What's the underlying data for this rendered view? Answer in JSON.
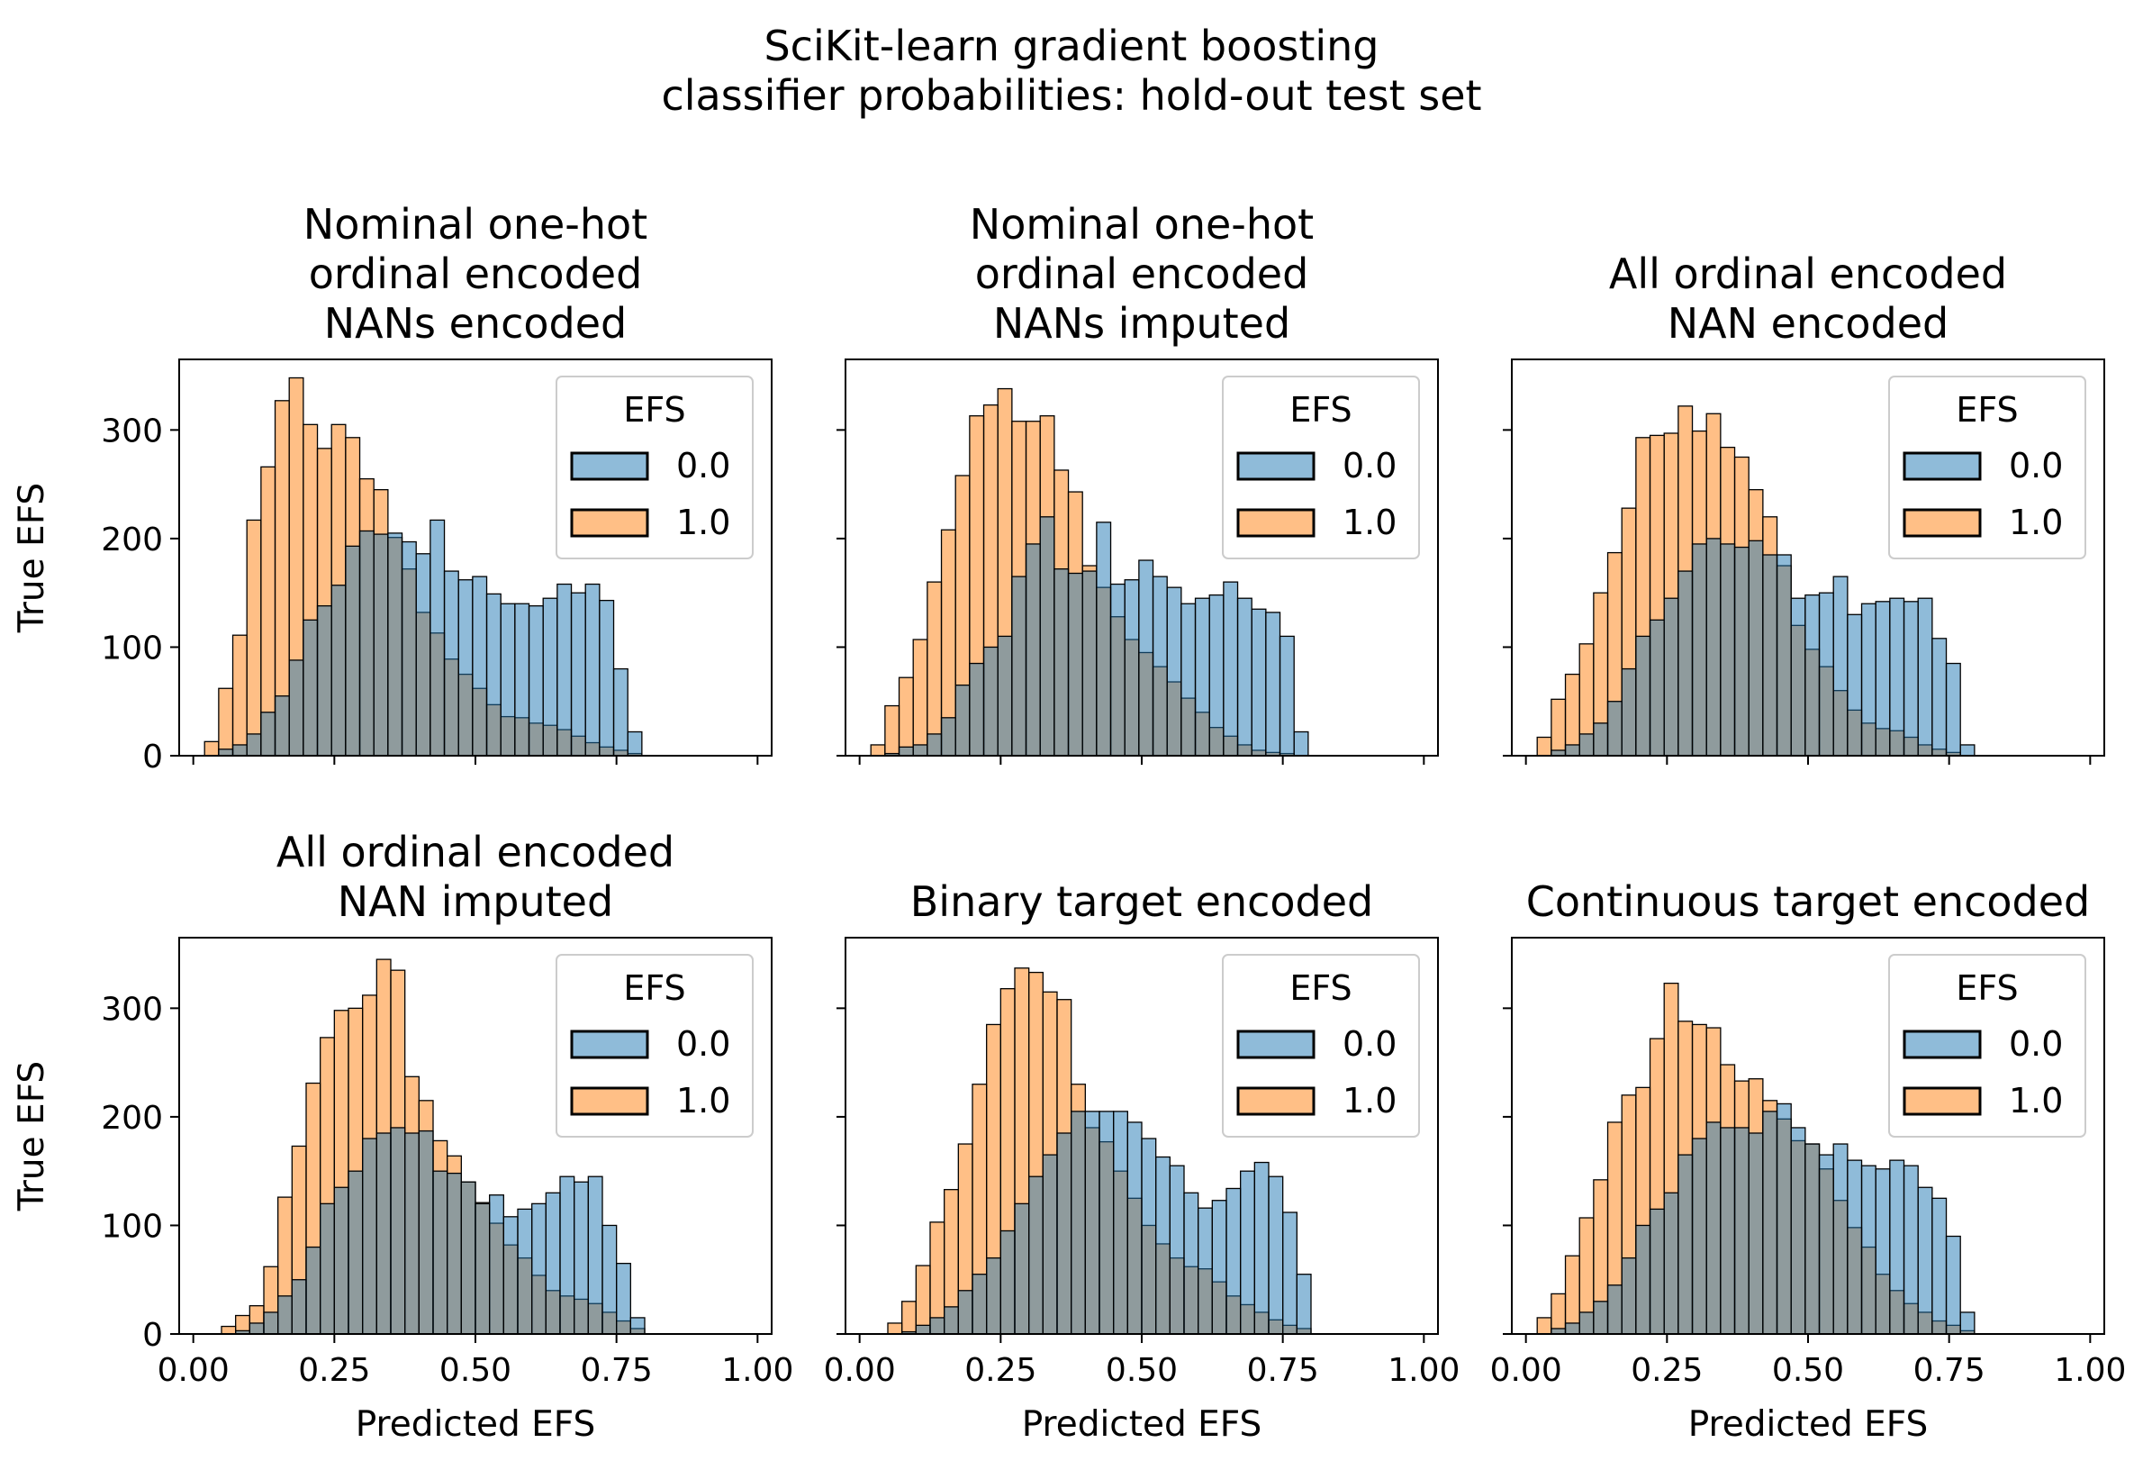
{
  "figure": {
    "suptitle_line1": "SciKit-learn gradient boosting",
    "suptitle_line2": "classifier probabilities: hold-out test set"
  },
  "colors": {
    "series_0": "#1f77b4",
    "series_1": "#ff7f0e",
    "edge": "#000000"
  },
  "chart_data": [
    {
      "type": "bar",
      "title": "Nominal one-hot ordinal encoded NANs encoded",
      "xlabel": "",
      "ylabel": "True EFS",
      "xlim": [
        -0.025,
        1.025
      ],
      "ylim": [
        0,
        365
      ],
      "xticks": [
        "0.00",
        "0.25",
        "0.50",
        "0.75",
        "1.00"
      ],
      "yticks": [
        "0",
        "100",
        "200",
        "300"
      ],
      "legend": {
        "title": "EFS",
        "position": "top-right",
        "labels": [
          "0.0",
          "1.0"
        ]
      },
      "x_start": 0.02,
      "bin_width": 0.025,
      "series": [
        {
          "name": "0.0",
          "values": [
            0,
            6,
            10,
            20,
            40,
            55,
            88,
            125,
            138,
            157,
            193,
            207,
            204,
            205,
            197,
            186,
            217,
            170,
            162,
            165,
            149,
            140,
            140,
            138,
            145,
            158,
            150,
            158,
            143,
            80,
            22
          ]
        },
        {
          "name": "1.0",
          "values": [
            13,
            62,
            111,
            217,
            266,
            327,
            348,
            305,
            283,
            305,
            293,
            255,
            245,
            201,
            172,
            132,
            113,
            89,
            75,
            62,
            47,
            36,
            35,
            30,
            28,
            24,
            18,
            12,
            8,
            5,
            2
          ]
        }
      ]
    },
    {
      "type": "bar",
      "title": "Nominal one-hot ordinal encoded NANs imputed",
      "xlabel": "",
      "ylabel": "",
      "xlim": [
        -0.025,
        1.025
      ],
      "ylim": [
        0,
        365
      ],
      "xticks": [
        "0.00",
        "0.25",
        "0.50",
        "0.75",
        "1.00"
      ],
      "yticks": [
        "0",
        "100",
        "200",
        "300"
      ],
      "legend": {
        "title": "EFS",
        "position": "top-right",
        "labels": [
          "0.0",
          "1.0"
        ]
      },
      "x_start": 0.02,
      "bin_width": 0.025,
      "series": [
        {
          "name": "0.0",
          "values": [
            0,
            2,
            8,
            10,
            20,
            35,
            65,
            85,
            100,
            110,
            165,
            195,
            220,
            172,
            168,
            170,
            215,
            158,
            162,
            180,
            165,
            155,
            140,
            145,
            148,
            160,
            145,
            135,
            132,
            110,
            22
          ]
        },
        {
          "name": "1.0",
          "values": [
            10,
            46,
            72,
            107,
            160,
            208,
            258,
            313,
            323,
            338,
            308,
            308,
            313,
            263,
            243,
            175,
            155,
            128,
            107,
            95,
            82,
            68,
            53,
            40,
            26,
            18,
            10,
            5,
            3,
            2,
            0
          ]
        }
      ]
    },
    {
      "type": "bar",
      "title": "All ordinal encoded NAN encoded",
      "xlabel": "",
      "ylabel": "",
      "xlim": [
        -0.025,
        1.025
      ],
      "ylim": [
        0,
        365
      ],
      "xticks": [
        "0.00",
        "0.25",
        "0.50",
        "0.75",
        "1.00"
      ],
      "yticks": [
        "0",
        "100",
        "200",
        "300"
      ],
      "legend": {
        "title": "EFS",
        "position": "top-right",
        "labels": [
          "0.0",
          "1.0"
        ]
      },
      "x_start": 0.02,
      "bin_width": 0.025,
      "series": [
        {
          "name": "0.0",
          "values": [
            0,
            5,
            10,
            20,
            30,
            50,
            80,
            110,
            125,
            145,
            170,
            195,
            200,
            195,
            192,
            198,
            185,
            185,
            145,
            148,
            150,
            165,
            130,
            140,
            142,
            145,
            142,
            145,
            108,
            85,
            10
          ]
        },
        {
          "name": "1.0",
          "values": [
            17,
            52,
            75,
            103,
            150,
            187,
            228,
            293,
            295,
            297,
            322,
            299,
            315,
            284,
            275,
            245,
            220,
            175,
            120,
            98,
            82,
            60,
            42,
            30,
            25,
            23,
            17,
            10,
            6,
            3,
            0
          ]
        }
      ]
    },
    {
      "type": "bar",
      "title": "All ordinal encoded NAN imputed",
      "xlabel": "Predicted EFS",
      "ylabel": "True EFS",
      "xlim": [
        -0.025,
        1.025
      ],
      "ylim": [
        0,
        365
      ],
      "xticks": [
        "0.00",
        "0.25",
        "0.50",
        "0.75",
        "1.00"
      ],
      "yticks": [
        "0",
        "100",
        "200",
        "300"
      ],
      "legend": {
        "title": "EFS",
        "position": "top-right",
        "labels": [
          "0.0",
          "1.0"
        ]
      },
      "x_start": 0.05,
      "bin_width": 0.025,
      "series": [
        {
          "name": "0.0",
          "values": [
            0,
            3,
            10,
            20,
            35,
            50,
            80,
            120,
            135,
            150,
            180,
            185,
            190,
            185,
            187,
            150,
            148,
            140,
            120,
            128,
            108,
            115,
            120,
            130,
            145,
            140,
            145,
            100,
            65,
            15
          ]
        },
        {
          "name": "1.0",
          "values": [
            7,
            17,
            26,
            62,
            126,
            173,
            231,
            273,
            298,
            300,
            312,
            345,
            335,
            237,
            215,
            178,
            164,
            140,
            121,
            102,
            82,
            70,
            54,
            40,
            35,
            32,
            28,
            20,
            12,
            5
          ]
        }
      ]
    },
    {
      "type": "bar",
      "title": "Binary target encoded",
      "xlabel": "Predicted EFS",
      "ylabel": "",
      "xlim": [
        -0.025,
        1.025
      ],
      "ylim": [
        0,
        365
      ],
      "xticks": [
        "0.00",
        "0.25",
        "0.50",
        "0.75",
        "1.00"
      ],
      "yticks": [
        "0",
        "100",
        "200",
        "300"
      ],
      "legend": {
        "title": "EFS",
        "position": "top-right",
        "labels": [
          "0.0",
          "1.0"
        ]
      },
      "x_start": 0.05,
      "bin_width": 0.025,
      "series": [
        {
          "name": "0.0",
          "values": [
            0,
            2,
            8,
            15,
            25,
            40,
            55,
            70,
            95,
            120,
            145,
            165,
            185,
            205,
            205,
            205,
            205,
            195,
            180,
            163,
            155,
            130,
            116,
            123,
            134,
            150,
            158,
            145,
            112,
            55
          ]
        },
        {
          "name": "1.0",
          "values": [
            10,
            30,
            63,
            103,
            133,
            175,
            230,
            285,
            318,
            337,
            333,
            315,
            308,
            230,
            190,
            177,
            150,
            125,
            100,
            83,
            70,
            62,
            60,
            48,
            35,
            27,
            20,
            13,
            8,
            5
          ]
        }
      ]
    },
    {
      "type": "bar",
      "title": "Continuous target encoded",
      "xlabel": "Predicted EFS",
      "ylabel": "",
      "xlim": [
        -0.025,
        1.025
      ],
      "ylim": [
        0,
        365
      ],
      "xticks": [
        "0.00",
        "0.25",
        "0.50",
        "0.75",
        "1.00"
      ],
      "yticks": [
        "0",
        "100",
        "200",
        "300"
      ],
      "legend": {
        "title": "EFS",
        "position": "top-right",
        "labels": [
          "0.0",
          "1.0"
        ]
      },
      "x_start": 0.02,
      "bin_width": 0.025,
      "series": [
        {
          "name": "0.0",
          "values": [
            0,
            5,
            10,
            20,
            30,
            45,
            70,
            100,
            115,
            130,
            165,
            180,
            195,
            190,
            190,
            185,
            205,
            212,
            190,
            175,
            165,
            175,
            160,
            155,
            152,
            160,
            155,
            135,
            125,
            90,
            20
          ]
        },
        {
          "name": "1.0",
          "values": [
            15,
            37,
            72,
            107,
            142,
            195,
            220,
            227,
            272,
            323,
            288,
            285,
            282,
            248,
            233,
            235,
            215,
            198,
            178,
            175,
            152,
            123,
            98,
            80,
            55,
            40,
            28,
            20,
            12,
            8,
            3
          ]
        }
      ]
    }
  ]
}
